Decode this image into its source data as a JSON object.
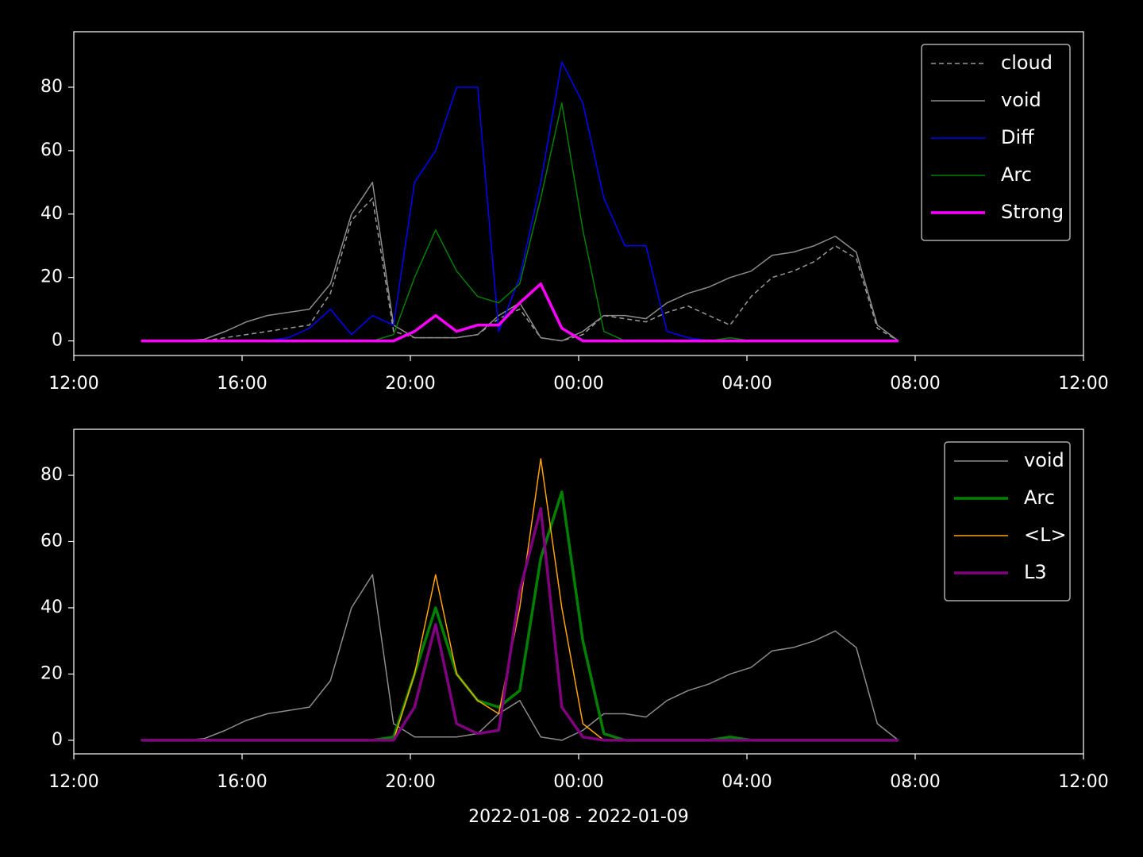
{
  "chart_data": [
    {
      "type": "line",
      "x": [
        13.6,
        14.1,
        14.6,
        15.1,
        15.6,
        16.1,
        16.6,
        17.1,
        17.6,
        18.1,
        18.6,
        19.1,
        19.6,
        20.1,
        20.6,
        21.1,
        21.6,
        22.1,
        22.6,
        23.1,
        23.6,
        24.1,
        24.6,
        25.1,
        25.6,
        26.1,
        26.6,
        27.1,
        27.6,
        28.1,
        28.6,
        29.1,
        29.6,
        30.1,
        30.6,
        31.1,
        31.6
      ],
      "series": [
        {
          "name": "cloud",
          "color": "#999999",
          "width": 1.5,
          "dashed": true,
          "values": [
            0,
            0,
            0,
            0,
            1,
            2,
            3,
            4,
            5,
            15,
            38,
            45,
            3,
            1,
            1,
            1,
            2,
            7,
            10,
            1,
            0,
            2,
            8,
            7,
            6,
            9,
            11,
            8,
            5,
            14,
            20,
            22,
            25,
            30,
            26,
            4,
            0
          ]
        },
        {
          "name": "void",
          "color": "#8c8c8c",
          "width": 1.5,
          "values": [
            0,
            0,
            0,
            0.5,
            3,
            6,
            8,
            9,
            10,
            18,
            40,
            50,
            5,
            1,
            1,
            1,
            2,
            8,
            12,
            1,
            0,
            3,
            8,
            8,
            7,
            12,
            15,
            17,
            20,
            22,
            27,
            28,
            30,
            33,
            28,
            5,
            0
          ]
        },
        {
          "name": "Diff",
          "color": "#0000ff",
          "width": 1.5,
          "values": [
            0,
            0,
            0,
            0,
            0,
            0,
            0,
            1,
            4,
            10,
            2,
            8,
            5,
            50,
            60,
            80,
            80,
            3,
            20,
            50,
            88,
            75,
            45,
            30,
            30,
            3,
            1,
            0,
            0,
            0,
            0,
            0,
            0,
            0,
            0,
            0,
            0
          ]
        },
        {
          "name": "Arc",
          "color": "#008000",
          "width": 1.5,
          "values": [
            0,
            0,
            0,
            0,
            0,
            0,
            0,
            0,
            0,
            0,
            0,
            0,
            2,
            20,
            35,
            22,
            14,
            12,
            18,
            45,
            75,
            35,
            3,
            0,
            0,
            0,
            0,
            0,
            1,
            0,
            0,
            0,
            0,
            0,
            0,
            0,
            0
          ]
        },
        {
          "name": "Strong",
          "color": "#ff00ff",
          "width": 3.5,
          "values": [
            0,
            0,
            0,
            0,
            0,
            0,
            0,
            0,
            0,
            0,
            0,
            0,
            0,
            3,
            8,
            3,
            5,
            5,
            12,
            18,
            4,
            0,
            0,
            0,
            0,
            0,
            0,
            0,
            0,
            0,
            0,
            0,
            0,
            0,
            0,
            0,
            0
          ]
        }
      ],
      "xlim": [
        12,
        36
      ],
      "xticks": [
        {
          "value": 12,
          "label": "12:00"
        },
        {
          "value": 16,
          "label": "16:00"
        },
        {
          "value": 20,
          "label": "20:00"
        },
        {
          "value": 24,
          "label": "00:00"
        },
        {
          "value": 28,
          "label": "04:00"
        },
        {
          "value": 32,
          "label": "08:00"
        },
        {
          "value": 36,
          "label": "12:00"
        }
      ],
      "ylim": [
        -4.6,
        97.5
      ],
      "yticks": [
        0,
        20,
        40,
        60,
        80
      ],
      "legend": "upper right"
    },
    {
      "type": "line",
      "x": [
        13.6,
        14.1,
        14.6,
        15.1,
        15.6,
        16.1,
        16.6,
        17.1,
        17.6,
        18.1,
        18.6,
        19.1,
        19.6,
        20.1,
        20.6,
        21.1,
        21.6,
        22.1,
        22.6,
        23.1,
        23.6,
        24.1,
        24.6,
        25.1,
        25.6,
        26.1,
        26.6,
        27.1,
        27.6,
        28.1,
        28.6,
        29.1,
        29.6,
        30.1,
        30.6,
        31.1,
        31.6
      ],
      "xlabel": "2022-01-08 - 2022-01-09",
      "series": [
        {
          "name": "void",
          "color": "#8c8c8c",
          "width": 1.5,
          "values": [
            0,
            0,
            0,
            0.5,
            3,
            6,
            8,
            9,
            10,
            18,
            40,
            50,
            5,
            1,
            1,
            1,
            2,
            8,
            12,
            1,
            0,
            3,
            8,
            8,
            7,
            12,
            15,
            17,
            20,
            22,
            27,
            28,
            30,
            33,
            28,
            5,
            0
          ]
        },
        {
          "name": "Arc",
          "color": "#008000",
          "width": 3.5,
          "values": [
            0,
            0,
            0,
            0,
            0,
            0,
            0,
            0,
            0,
            0,
            0,
            0,
            1,
            20,
            40,
            20,
            12,
            10,
            15,
            55,
            75,
            30,
            2,
            0,
            0,
            0,
            0,
            0,
            1,
            0,
            0,
            0,
            0,
            0,
            0,
            0,
            0
          ]
        },
        {
          "name": "<L>",
          "color": "#ffa500",
          "width": 1.5,
          "values": [
            0,
            0,
            0,
            0,
            0,
            0,
            0,
            0,
            0,
            0,
            0,
            0,
            0,
            20,
            50,
            20,
            12,
            8,
            40,
            85,
            40,
            5,
            0,
            0,
            0,
            0,
            0,
            0,
            0,
            0,
            0,
            0,
            0,
            0,
            0,
            0,
            0
          ]
        },
        {
          "name": "L3",
          "color": "#800080",
          "width": 3.5,
          "values": [
            0,
            0,
            0,
            0,
            0,
            0,
            0,
            0,
            0,
            0,
            0,
            0,
            0,
            10,
            35,
            5,
            2,
            3,
            45,
            70,
            10,
            1,
            0,
            0,
            0,
            0,
            0,
            0,
            0,
            0,
            0,
            0,
            0,
            0,
            0,
            0,
            0
          ]
        }
      ],
      "xlim": [
        12,
        36
      ],
      "xticks": [
        {
          "value": 12,
          "label": "12:00"
        },
        {
          "value": 16,
          "label": "16:00"
        },
        {
          "value": 20,
          "label": "20:00"
        },
        {
          "value": 24,
          "label": "00:00"
        },
        {
          "value": 28,
          "label": "04:00"
        },
        {
          "value": 32,
          "label": "08:00"
        },
        {
          "value": 36,
          "label": "12:00"
        }
      ],
      "ylim": [
        -4.1,
        93.9
      ],
      "yticks": [
        0,
        20,
        40,
        60,
        80
      ],
      "legend": "upper right"
    }
  ]
}
